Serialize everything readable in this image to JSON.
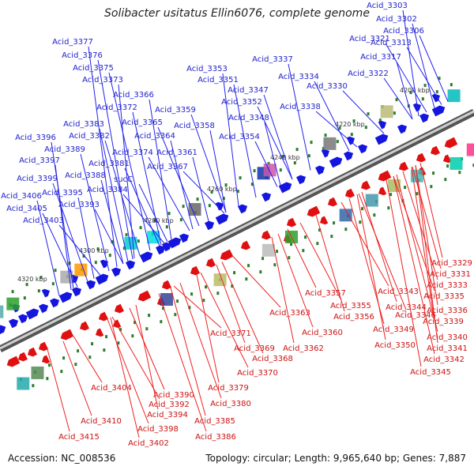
{
  "title": "Solibacter usitatus Ellin6076, complete genome",
  "accession": "Accession: NC_008536",
  "summary": "Topology: circular; Length: 9,965,640 bp; Genes: 7,887",
  "colors": {
    "forward": "#1515e0",
    "reverse": "#e01010",
    "leader_forward": "#2222ee",
    "leader_reverse": "#ee2222",
    "backbone": "#8a8a8a",
    "tick": "#2e7d2e"
  },
  "ticks": [
    "4200 kbp",
    "4220 kbp",
    "4240 kbp",
    "4260 kbp",
    "4280 kbp",
    "4300 kbp",
    "4320 kbp"
  ],
  "forward_labels": [
    "Acid_3303",
    "Acid_3302",
    "Acid_3306",
    "Acid_3313",
    "Acid_3321",
    "Acid_3317",
    "Acid_3337",
    "Acid_3322",
    "Acid_3334",
    "Acid_3330",
    "Acid_3353",
    "Acid_3351",
    "Acid_3347",
    "Acid_3352",
    "Acid_3338",
    "Acid_3348",
    "Acid_3354",
    "Acid_3377",
    "Acid_3376",
    "Acid_3375",
    "Acid_3373",
    "Acid_3366",
    "Acid_3372",
    "Acid_3359",
    "Acid_3365",
    "Acid_3358",
    "Acid_3364",
    "Acid_3383",
    "Acid_3382",
    "Acid_3374",
    "Acid_3361",
    "Acid_3396",
    "Acid_3389",
    "Acid_3381",
    "Acid_3367",
    "Acid_3397",
    "Acid_3388",
    "sucC",
    "Acid_3399",
    "Acid_3384",
    "Acid_3395",
    "Acid_3406",
    "Acid_3393",
    "Acid_3405",
    "Acid_3403"
  ],
  "reverse_labels": [
    "Acid_3329",
    "Acid_3331",
    "Acid_3333",
    "Acid_3335",
    "Acid_3343",
    "Acid_3336",
    "Acid_3357",
    "Acid_3344",
    "Acid_3355",
    "Acid_3346",
    "Acid_3339",
    "Acid_3356",
    "Acid_3349",
    "Acid_3340",
    "Acid_3363",
    "Acid_3341",
    "Acid_3350",
    "Acid_3360",
    "Acid_3342",
    "Acid_3371",
    "Acid_3362",
    "Acid_3369",
    "Acid_3345",
    "Acid_3368",
    "Acid_3370",
    "Acid_3379",
    "Acid_3404",
    "Acid_3390",
    "Acid_3380",
    "Acid_3392",
    "Acid_3394",
    "Acid_3410",
    "Acid_3385",
    "Acid_3398",
    "Acid_3386",
    "Acid_3415",
    "Acid_3402"
  ]
}
